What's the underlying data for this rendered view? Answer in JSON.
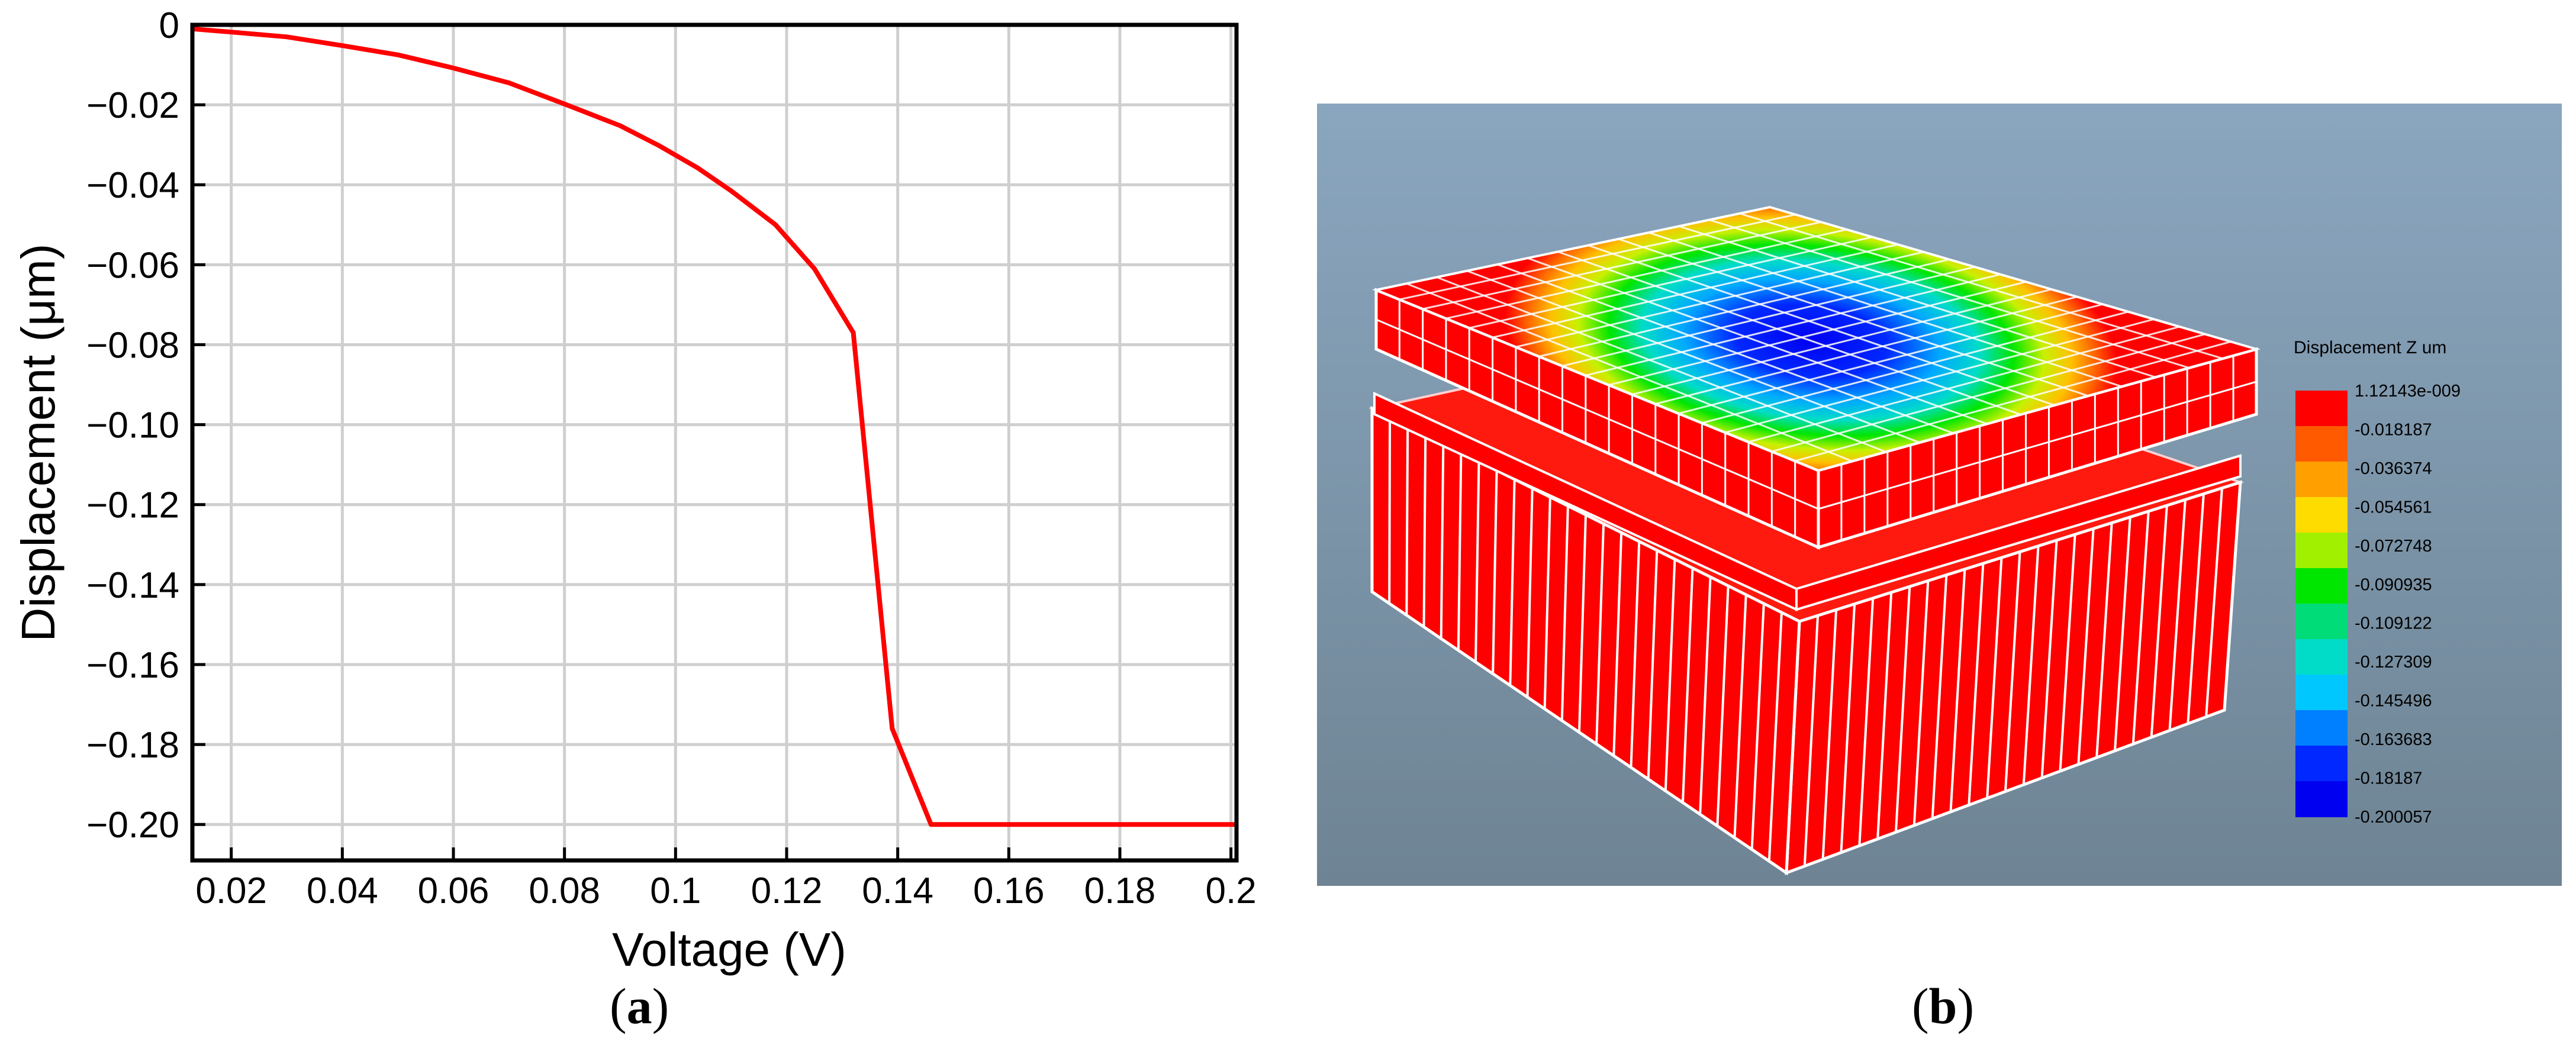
{
  "chart_data": [
    {
      "type": "line",
      "xlabel": "Voltage (V)",
      "ylabel": "Displacement (μm)",
      "xlim": [
        0.013,
        0.201
      ],
      "ylim": [
        -0.209,
        0.0
      ],
      "xticks": [
        0.02,
        0.04,
        0.06,
        0.08,
        0.1,
        0.12,
        0.14,
        0.16,
        0.18,
        0.2
      ],
      "xtick_labels": [
        "0.02",
        "0.04",
        "0.06",
        "0.08",
        "0.1",
        "0.12",
        "0.14",
        "0.16",
        "0.18",
        "0.2"
      ],
      "yticks": [
        0,
        -0.02,
        -0.04,
        -0.06,
        -0.08,
        -0.1,
        -0.12,
        -0.14,
        -0.16,
        -0.18,
        -0.2
      ],
      "ytick_labels": [
        "0",
        "−0.02",
        "−0.04",
        "−0.06",
        "−0.08",
        "−0.10",
        "−0.12",
        "−0.14",
        "−0.16",
        "−0.18",
        "−0.20"
      ],
      "grid": true,
      "series": [
        {
          "color": "#ff0000",
          "x": [
            0.013,
            0.02,
            0.03,
            0.04,
            0.05,
            0.06,
            0.07,
            0.08,
            0.09,
            0.097,
            0.104,
            0.11,
            0.118,
            0.125,
            0.132,
            0.139,
            0.146,
            0.16,
            0.18,
            0.201
          ],
          "y": [
            -0.001,
            -0.0018,
            -0.003,
            -0.0052,
            -0.0075,
            -0.0108,
            -0.0145,
            -0.0198,
            -0.0252,
            -0.0302,
            -0.0358,
            -0.0415,
            -0.05,
            -0.061,
            -0.077,
            -0.176,
            -0.2,
            -0.2,
            -0.2,
            -0.2
          ]
        }
      ]
    },
    {
      "type": "heatmap",
      "colorbar_title": "Displacement Z um",
      "colorbar_labels": [
        "1.12143e-009",
        "-0.018187",
        "-0.036374",
        "-0.054561",
        "-0.072748",
        "-0.090935",
        "-0.109122",
        "-0.127309",
        "-0.145496",
        "-0.163683",
        "-0.18187",
        "-0.200057"
      ],
      "colorbar_colors": [
        "#ff0000",
        "#ff5a00",
        "#ffa000",
        "#ffdc00",
        "#a0f000",
        "#00e600",
        "#00dc78",
        "#00dcc8",
        "#00c8ff",
        "#0080ff",
        "#0028ff",
        "#0000f0"
      ]
    }
  ],
  "panel_labels": {
    "a": "a",
    "b": "b"
  }
}
